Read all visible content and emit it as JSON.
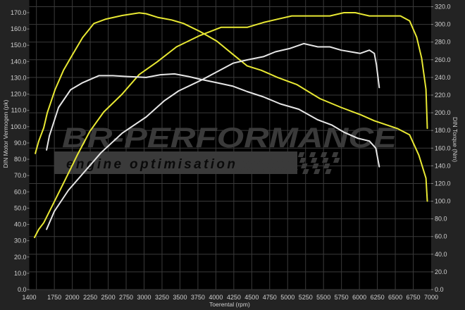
{
  "chart_data": {
    "type": "line",
    "xlabel": "Toerental (rpm)",
    "ylabel_left": "DIN Motor Vermogen (pk)",
    "ylabel_right": "DIN Torque (Nm)",
    "xlim": [
      1400,
      7000
    ],
    "ylim_left": [
      0,
      170
    ],
    "ylim_right": [
      0,
      320
    ],
    "grid": true,
    "x_ticks": [
      "1400",
      "1750",
      "2000",
      "2250",
      "2500",
      "2750",
      "3000",
      "3250",
      "3500",
      "3750",
      "4000",
      "4250",
      "4500",
      "4750",
      "5000",
      "5250",
      "5500",
      "5750",
      "6000",
      "6250",
      "6500",
      "6750",
      "7000"
    ],
    "y_left_ticks": [
      "0.0",
      "10.0",
      "20.0",
      "30.0",
      "40.0",
      "50.0",
      "60.0",
      "70.0",
      "80.0",
      "90.0",
      "100.0",
      "110.0",
      "120.0",
      "130.0",
      "140.0",
      "150.0",
      "160.0",
      "170.0"
    ],
    "y_right_ticks": [
      "0.0",
      "20.0",
      "40.0",
      "60.0",
      "80.0",
      "100.0",
      "120.0",
      "140.0",
      "160.0",
      "180.0",
      "200.0",
      "220.0",
      "240.0",
      "260.0",
      "280.0",
      "300.0",
      "320.0"
    ],
    "series": [
      {
        "axis": "left",
        "color": "#e8e833",
        "points": [
          [
            1474,
            32
          ],
          [
            1533,
            37
          ],
          [
            1602,
            41
          ],
          [
            1749,
            54
          ],
          [
            1907,
            68
          ],
          [
            2074,
            83
          ],
          [
            2242,
            97
          ],
          [
            2438,
            109
          ],
          [
            2694,
            120
          ],
          [
            2931,
            132
          ],
          [
            3187,
            140
          ],
          [
            3452,
            149
          ],
          [
            3777,
            156
          ],
          [
            4072,
            161
          ],
          [
            4437,
            161
          ],
          [
            4663,
            164
          ],
          [
            4860,
            166
          ],
          [
            5057,
            168
          ],
          [
            5224,
            168
          ],
          [
            5421,
            168
          ],
          [
            5588,
            168
          ],
          [
            5785,
            170
          ],
          [
            5943,
            170
          ],
          [
            6139,
            168
          ],
          [
            6375,
            168
          ],
          [
            6572,
            168
          ],
          [
            6700,
            165
          ],
          [
            6798,
            155
          ],
          [
            6867,
            142
          ],
          [
            6927,
            123
          ],
          [
            6946,
            99
          ]
        ]
      },
      {
        "axis": "right",
        "color": "#e8e833",
        "points": [
          [
            1484,
            154
          ],
          [
            1533,
            168
          ],
          [
            1602,
            183
          ],
          [
            1651,
            200
          ],
          [
            1759,
            226
          ],
          [
            1877,
            248
          ],
          [
            2005,
            266
          ],
          [
            2143,
            285
          ],
          [
            2301,
            301
          ],
          [
            2468,
            306
          ],
          [
            2694,
            310
          ],
          [
            2931,
            313
          ],
          [
            3029,
            312
          ],
          [
            3187,
            308
          ],
          [
            3383,
            305
          ],
          [
            3550,
            301
          ],
          [
            3777,
            292
          ],
          [
            4013,
            281
          ],
          [
            4240,
            266
          ],
          [
            4437,
            253
          ],
          [
            4633,
            248
          ],
          [
            4860,
            240
          ],
          [
            5126,
            232
          ],
          [
            5450,
            216
          ],
          [
            5746,
            206
          ],
          [
            6011,
            198
          ],
          [
            6208,
            191
          ],
          [
            6533,
            182
          ],
          [
            6700,
            175
          ],
          [
            6828,
            152
          ],
          [
            6927,
            126
          ],
          [
            6946,
            100
          ]
        ]
      },
      {
        "axis": "left",
        "color": "#e6e6e6",
        "points": [
          [
            1641,
            37
          ],
          [
            1749,
            48
          ],
          [
            1946,
            61
          ],
          [
            2143,
            71
          ],
          [
            2399,
            84
          ],
          [
            2694,
            96
          ],
          [
            3029,
            106
          ],
          [
            3285,
            116
          ],
          [
            3482,
            122
          ],
          [
            3816,
            129
          ],
          [
            4072,
            135
          ],
          [
            4240,
            139
          ],
          [
            4437,
            141
          ],
          [
            4663,
            143
          ],
          [
            4830,
            146
          ],
          [
            5027,
            148
          ],
          [
            5224,
            151
          ],
          [
            5421,
            149
          ],
          [
            5588,
            149
          ],
          [
            5746,
            147
          ],
          [
            6011,
            145
          ],
          [
            6139,
            147
          ],
          [
            6208,
            145
          ],
          [
            6237,
            138
          ],
          [
            6277,
            124
          ]
        ]
      },
      {
        "axis": "right",
        "color": "#e6e6e6",
        "points": [
          [
            1641,
            158
          ],
          [
            1681,
            174
          ],
          [
            1808,
            206
          ],
          [
            1976,
            226
          ],
          [
            2143,
            234
          ],
          [
            2370,
            242
          ],
          [
            2566,
            242
          ],
          [
            2763,
            241
          ],
          [
            3029,
            240
          ],
          [
            3226,
            243
          ],
          [
            3423,
            244
          ],
          [
            3620,
            241
          ],
          [
            3777,
            238
          ],
          [
            4013,
            234
          ],
          [
            4240,
            230
          ],
          [
            4437,
            224
          ],
          [
            4663,
            218
          ],
          [
            4899,
            210
          ],
          [
            5155,
            204
          ],
          [
            5421,
            192
          ],
          [
            5618,
            186
          ],
          [
            5785,
            178
          ],
          [
            5982,
            171
          ],
          [
            6139,
            168
          ],
          [
            6228,
            160
          ],
          [
            6277,
            139
          ]
        ]
      }
    ]
  },
  "watermark": {
    "brand": "BR-Performance",
    "tagline": "engine optimisation"
  }
}
